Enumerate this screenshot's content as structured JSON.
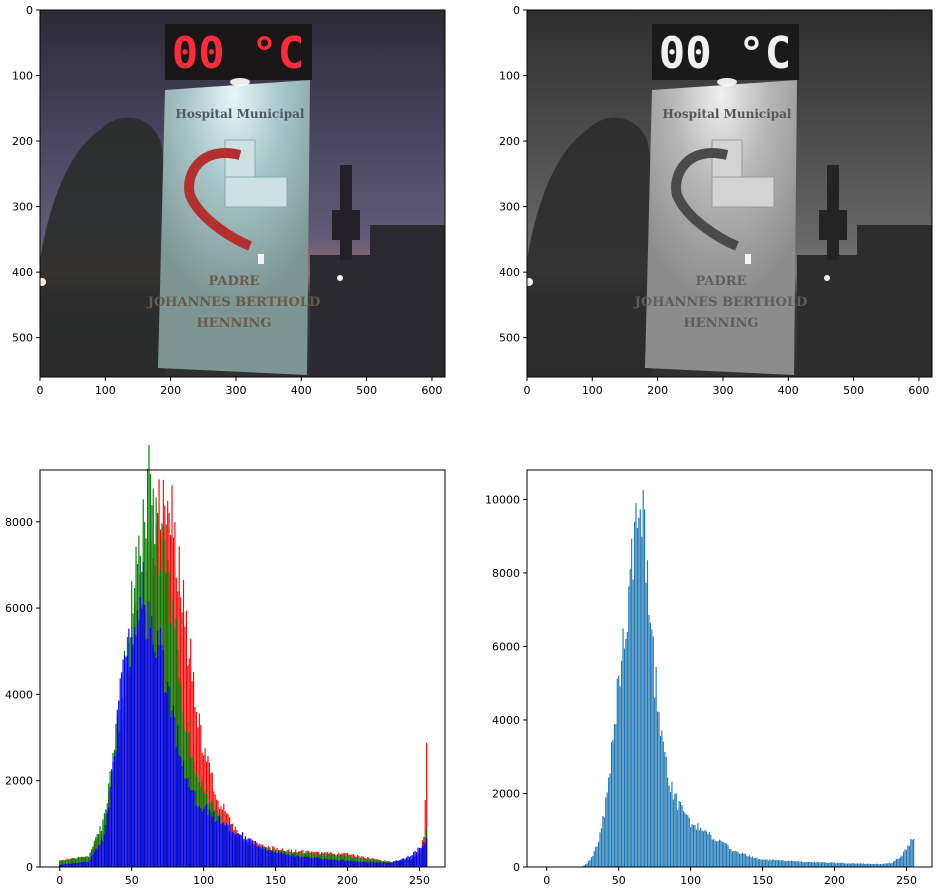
{
  "panels": {
    "color_photo": {
      "led_display": "00 °C",
      "sign_header": "Hospital Municipal",
      "sign_lines": [
        "PADRE",
        "JOHANNES BERTHOLD",
        "HENNING"
      ]
    },
    "gray_photo": {
      "led_display": "00 °C",
      "sign_header": "Hospital Municipal",
      "sign_lines": [
        "PADRE",
        "JOHANNES BERTHOLD",
        "HENNING"
      ]
    }
  },
  "colors": {
    "red": "#ff0000",
    "green": "#008000",
    "blue": "#0000ff",
    "gray_hist": "#1f77b4",
    "led": "#ff2a3a"
  },
  "chart_data": [
    {
      "type": "image",
      "xlim": [
        0,
        620
      ],
      "ylim": [
        560,
        0
      ],
      "xticks": [
        "0",
        "100",
        "200",
        "300",
        "400",
        "500",
        "600"
      ],
      "yticks": [
        "0",
        "100",
        "200",
        "300",
        "400",
        "500"
      ]
    },
    {
      "type": "image",
      "xlim": [
        0,
        620
      ],
      "ylim": [
        560,
        0
      ],
      "xticks": [
        "0",
        "100",
        "200",
        "300",
        "400",
        "500",
        "600"
      ],
      "yticks": [
        "0",
        "100",
        "200",
        "300",
        "400",
        "500"
      ]
    },
    {
      "type": "bar",
      "xlim": [
        -13.75,
        267.75
      ],
      "ylim": [
        0,
        9200
      ],
      "xticks": [
        "0",
        "50",
        "100",
        "150",
        "200",
        "250"
      ],
      "yticks": [
        "0",
        "2000",
        "4000",
        "6000",
        "8000"
      ],
      "series": [
        {
          "name": "",
          "color": "red",
          "points": [
            [
              0,
              150
            ],
            [
              20,
              250
            ],
            [
              30,
              900
            ],
            [
              40,
              2600
            ],
            [
              50,
              5100
            ],
            [
              55,
              6000
            ],
            [
              60,
              6600
            ],
            [
              65,
              7500
            ],
            [
              70,
              8300
            ],
            [
              73,
              8700
            ],
            [
              76,
              8400
            ],
            [
              80,
              7600
            ],
            [
              85,
              6200
            ],
            [
              90,
              5000
            ],
            [
              95,
              3800
            ],
            [
              100,
              2600
            ],
            [
              110,
              1600
            ],
            [
              120,
              900
            ],
            [
              130,
              600
            ],
            [
              140,
              480
            ],
            [
              160,
              380
            ],
            [
              180,
              330
            ],
            [
              200,
              300
            ],
            [
              215,
              200
            ],
            [
              230,
              120
            ],
            [
              245,
              200
            ],
            [
              250,
              350
            ],
            [
              253,
              700
            ],
            [
              255,
              2650
            ]
          ]
        },
        {
          "name": "",
          "color": "green",
          "points": [
            [
              0,
              150
            ],
            [
              20,
              250
            ],
            [
              30,
              1000
            ],
            [
              40,
              3200
            ],
            [
              50,
              6000
            ],
            [
              55,
              7200
            ],
            [
              60,
              8200
            ],
            [
              62,
              8750
            ],
            [
              65,
              8200
            ],
            [
              70,
              7500
            ],
            [
              75,
              6700
            ],
            [
              80,
              5500
            ],
            [
              85,
              4000
            ],
            [
              90,
              3000
            ],
            [
              95,
              2200
            ],
            [
              100,
              1700
            ],
            [
              110,
              1200
            ],
            [
              120,
              800
            ],
            [
              130,
              550
            ],
            [
              140,
              450
            ],
            [
              160,
              350
            ],
            [
              180,
              300
            ],
            [
              200,
              250
            ],
            [
              215,
              180
            ],
            [
              230,
              120
            ],
            [
              245,
              200
            ],
            [
              250,
              300
            ],
            [
              253,
              450
            ],
            [
              255,
              800
            ]
          ]
        },
        {
          "name": "",
          "color": "blue",
          "points": [
            [
              0,
              60
            ],
            [
              20,
              120
            ],
            [
              30,
              650
            ],
            [
              35,
              1700
            ],
            [
              40,
              3400
            ],
            [
              45,
              4700
            ],
            [
              50,
              5300
            ],
            [
              55,
              6000
            ],
            [
              58,
              6400
            ],
            [
              60,
              5600
            ],
            [
              65,
              5700
            ],
            [
              70,
              5000
            ],
            [
              75,
              4300
            ],
            [
              80,
              3300
            ],
            [
              85,
              2500
            ],
            [
              90,
              1900
            ],
            [
              95,
              1600
            ],
            [
              100,
              1400
            ],
            [
              110,
              1100
            ],
            [
              120,
              900
            ],
            [
              130,
              700
            ],
            [
              140,
              450
            ],
            [
              150,
              330
            ],
            [
              170,
              230
            ],
            [
              190,
              170
            ],
            [
              210,
              120
            ],
            [
              230,
              100
            ],
            [
              240,
              200
            ],
            [
              245,
              300
            ],
            [
              250,
              450
            ],
            [
              253,
              550
            ],
            [
              255,
              650
            ]
          ]
        }
      ]
    },
    {
      "type": "bar",
      "xlim": [
        -13.75,
        267.75
      ],
      "ylim": [
        0,
        10800
      ],
      "xticks": [
        "0",
        "50",
        "100",
        "150",
        "200",
        "250"
      ],
      "yticks": [
        "0",
        "2000",
        "4000",
        "6000",
        "8000",
        "10000"
      ],
      "series": [
        {
          "name": "",
          "color": "gray_hist",
          "points": [
            [
              0,
              0
            ],
            [
              24,
              0
            ],
            [
              28,
              100
            ],
            [
              32,
              300
            ],
            [
              36,
              700
            ],
            [
              40,
              1500
            ],
            [
              44,
              2800
            ],
            [
              48,
              4300
            ],
            [
              52,
              5500
            ],
            [
              55,
              6500
            ],
            [
              58,
              7600
            ],
            [
              60,
              8500
            ],
            [
              62,
              9800
            ],
            [
              64,
              10200
            ],
            [
              66,
              9900
            ],
            [
              68,
              8800
            ],
            [
              70,
              7800
            ],
            [
              72,
              6500
            ],
            [
              75,
              5200
            ],
            [
              80,
              3500
            ],
            [
              85,
              2400
            ],
            [
              90,
              1800
            ],
            [
              95,
              1500
            ],
            [
              100,
              1200
            ],
            [
              110,
              950
            ],
            [
              120,
              700
            ],
            [
              130,
              450
            ],
            [
              140,
              300
            ],
            [
              150,
              200
            ],
            [
              170,
              160
            ],
            [
              190,
              130
            ],
            [
              210,
              100
            ],
            [
              230,
              80
            ],
            [
              240,
              120
            ],
            [
              245,
              250
            ],
            [
              250,
              500
            ],
            [
              253,
              700
            ],
            [
              255,
              800
            ]
          ]
        }
      ]
    }
  ]
}
